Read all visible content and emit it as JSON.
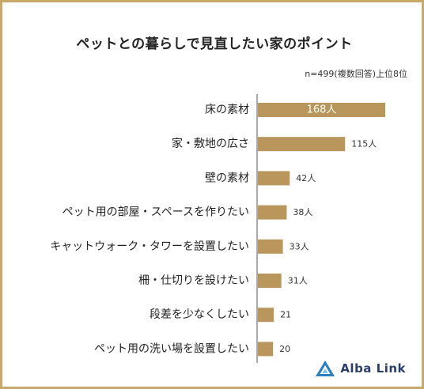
{
  "title": "ペットとの暮らしで見直したい家のポイント",
  "note": "n=499(複数回答)上位8位",
  "brand": "Alba Link",
  "colors": {
    "bar": "#b8965c",
    "frame": "#c8a96a",
    "axis": "#555555"
  },
  "chart_data": {
    "type": "bar",
    "orientation": "horizontal",
    "categories": [
      "床の素材",
      "家・敷地の広さ",
      "壁の素材",
      "ペット用の部屋・スペースを作りたい",
      "キャットウォーク・タワーを設置したい",
      "柵・仕切りを設けたい",
      "段差を少なくしたい",
      "ペット用の洗い場を設置したい"
    ],
    "values": [
      168,
      115,
      42,
      38,
      33,
      31,
      21,
      20
    ],
    "value_labels": [
      "168人",
      "115人",
      "42人",
      "38人",
      "33人",
      "31人",
      "21",
      "20"
    ],
    "xlim": [
      0,
      168
    ],
    "grid": false,
    "legend": "none"
  }
}
